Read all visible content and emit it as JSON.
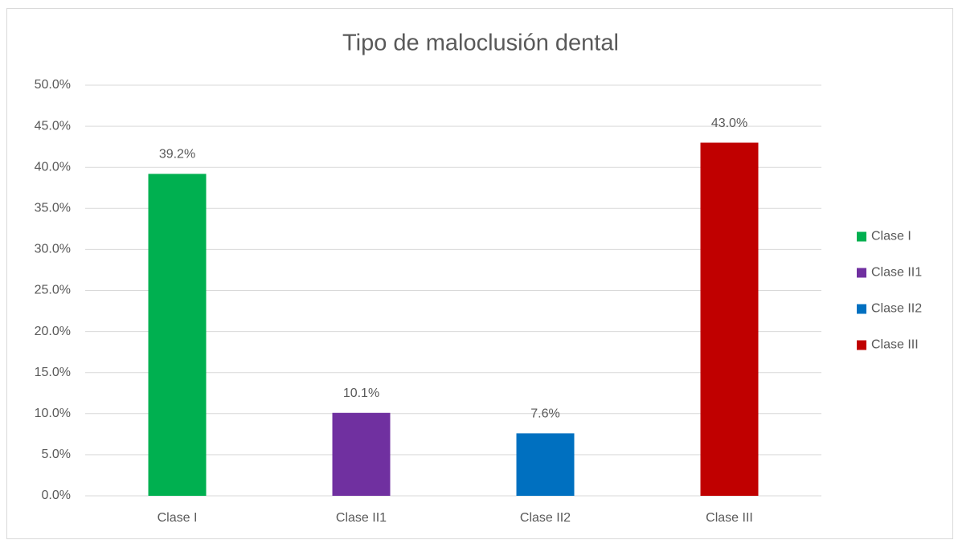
{
  "chart_data": {
    "type": "bar",
    "title": "Tipo de maloclusión dental",
    "categories": [
      "Clase I",
      "Clase II1",
      "Clase II2",
      "Clase III"
    ],
    "values": [
      39.2,
      10.1,
      7.6,
      43.0
    ],
    "value_labels": [
      "39.2%",
      "10.1%",
      "7.6%",
      "43.0%"
    ],
    "colors": [
      "#00b050",
      "#7030a0",
      "#0070c0",
      "#c00000"
    ],
    "ylim": [
      0,
      50
    ],
    "yticks": [
      {
        "value": 0,
        "label": "0.0%"
      },
      {
        "value": 5,
        "label": "5.0%"
      },
      {
        "value": 10,
        "label": "10.0%"
      },
      {
        "value": 15,
        "label": "15.0%"
      },
      {
        "value": 20,
        "label": "20.0%"
      },
      {
        "value": 25,
        "label": "25.0%"
      },
      {
        "value": 30,
        "label": "30.0%"
      },
      {
        "value": 35,
        "label": "35.0%"
      },
      {
        "value": 40,
        "label": "40.0%"
      },
      {
        "value": 45,
        "label": "45.0%"
      },
      {
        "value": 50,
        "label": "50.0%"
      }
    ],
    "grid": true,
    "legend": "right"
  }
}
